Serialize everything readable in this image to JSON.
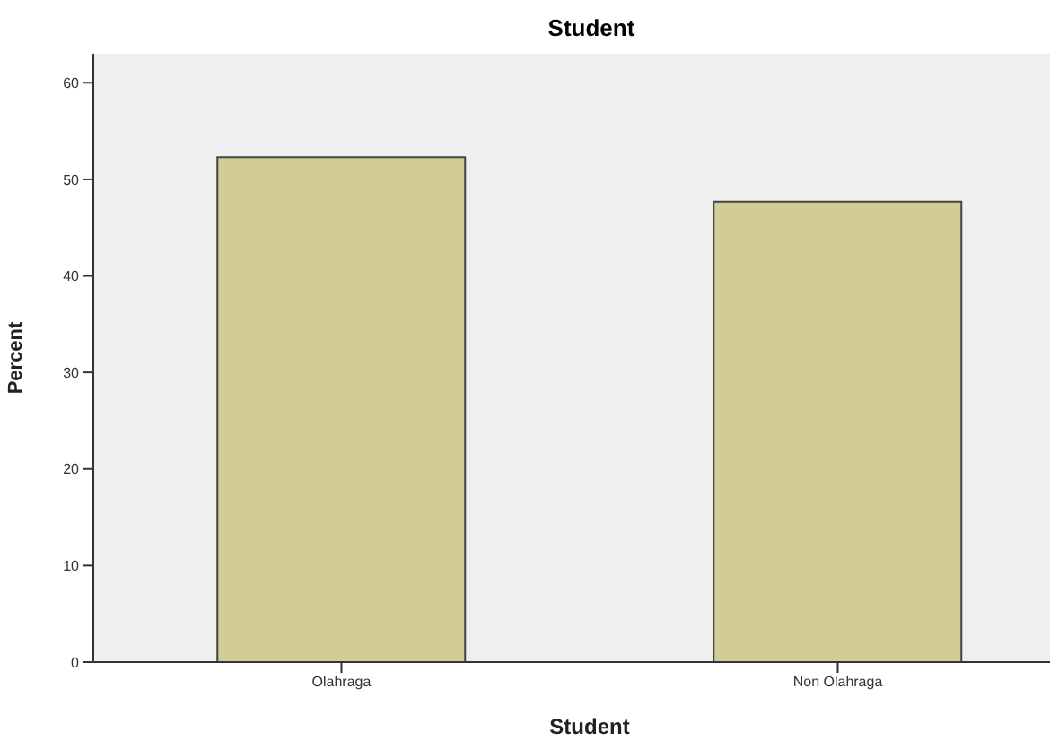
{
  "chart_data": {
    "type": "bar",
    "title": "Student",
    "xlabel": "Student",
    "ylabel": "Percent",
    "categories": [
      "Olahraga",
      "Non Olahraga"
    ],
    "values": [
      52.3,
      47.7
    ],
    "color": "#d2cd96",
    "ylim": [
      0,
      63
    ],
    "yticks": [
      0,
      10,
      20,
      30,
      40,
      50,
      60
    ],
    "grid": false
  }
}
